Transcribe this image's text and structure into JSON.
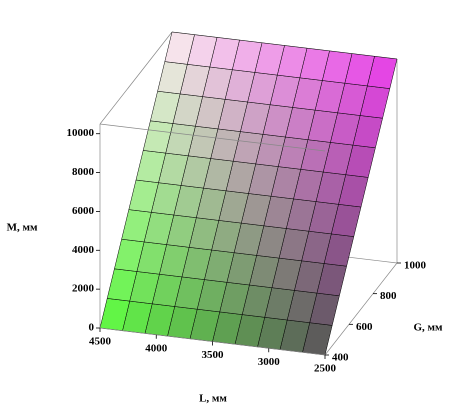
{
  "chart_data": {
    "type": "surface",
    "x_label": "L, мм",
    "y_label": "G, мм",
    "z_label": "M, мм",
    "x": [
      2500,
      2700,
      2900,
      3100,
      3300,
      3500,
      3700,
      3900,
      4100,
      4300,
      4500
    ],
    "y": [
      400,
      460,
      520,
      580,
      640,
      700,
      760,
      820,
      880,
      940,
      1000
    ],
    "z": [
      [
        0,
        0,
        0,
        0,
        0,
        0,
        0,
        0,
        0,
        0,
        0
      ],
      [
        1050,
        1050,
        1050,
        1050,
        1050,
        1050,
        1050,
        1050,
        1050,
        1050,
        1050
      ],
      [
        2100,
        2100,
        2100,
        2100,
        2100,
        2100,
        2100,
        2100,
        2100,
        2100,
        2100
      ],
      [
        3150,
        3150,
        3150,
        3150,
        3150,
        3150,
        3150,
        3150,
        3150,
        3150,
        3150
      ],
      [
        4200,
        4200,
        4200,
        4200,
        4200,
        4200,
        4200,
        4200,
        4200,
        4200,
        4200
      ],
      [
        5250,
        5250,
        5250,
        5250,
        5250,
        5250,
        5250,
        5250,
        5250,
        5250,
        5250
      ],
      [
        6300,
        6300,
        6300,
        6300,
        6300,
        6300,
        6300,
        6300,
        6300,
        6300,
        6300
      ],
      [
        7350,
        7350,
        7350,
        7350,
        7350,
        7350,
        7350,
        7350,
        7350,
        7350,
        7350
      ],
      [
        8400,
        8400,
        8400,
        8400,
        8400,
        8400,
        8400,
        8400,
        8400,
        8400,
        8400
      ],
      [
        9450,
        9450,
        9450,
        9450,
        9450,
        9450,
        9450,
        9450,
        9450,
        9450,
        9450
      ],
      [
        10500,
        10500,
        10500,
        10500,
        10500,
        10500,
        10500,
        10500,
        10500,
        10500,
        10500
      ]
    ],
    "xlim": [
      2500,
      4500
    ],
    "ylim": [
      400,
      1000
    ],
    "zlim": [
      0,
      10500
    ],
    "xticks": [
      2500,
      3000,
      3500,
      4000,
      4500
    ],
    "yticks": [
      400,
      600,
      800,
      1000
    ],
    "zticks": [
      0,
      2000,
      4000,
      6000,
      8000,
      10000
    ]
  }
}
